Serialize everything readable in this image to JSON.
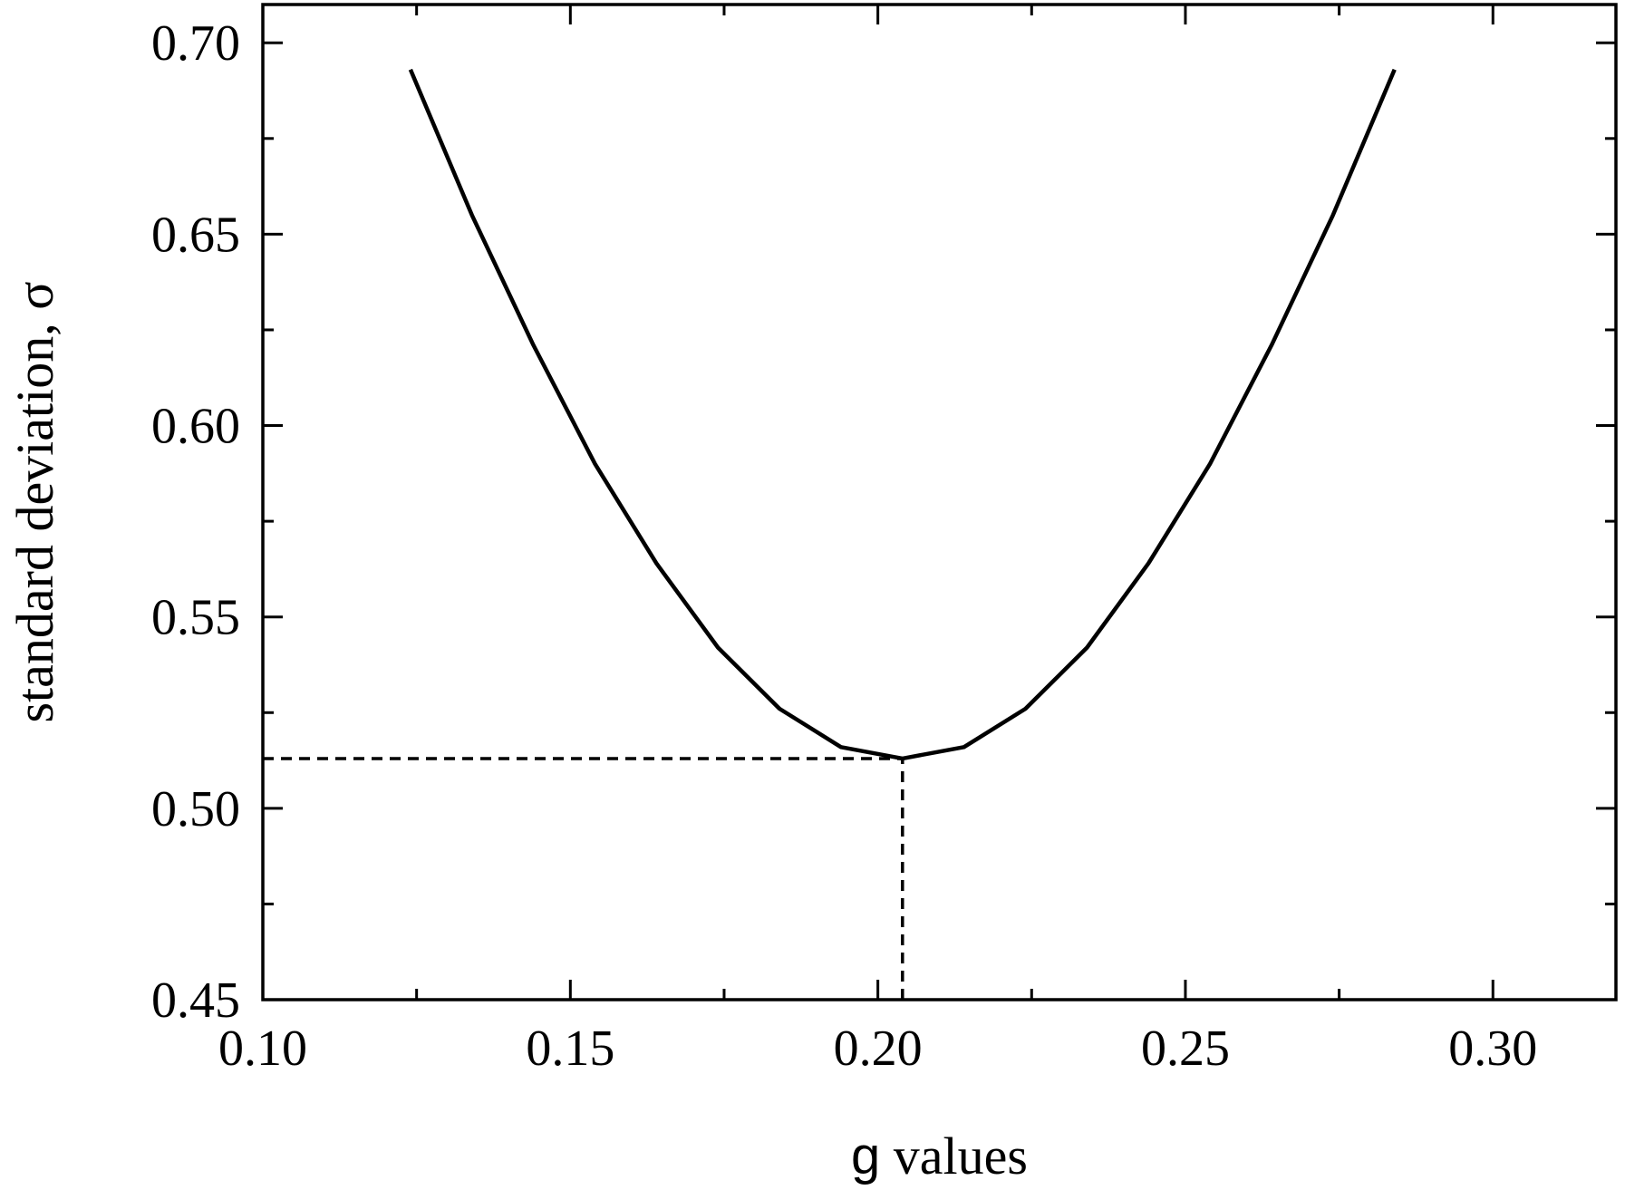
{
  "chart_data": {
    "type": "line",
    "title": "",
    "xlabel": "g values",
    "xlabel_parts": [
      "g",
      " values"
    ],
    "ylabel": "standard deviation, σ",
    "xlim": [
      0.1,
      0.32
    ],
    "ylim": [
      0.45,
      0.71
    ],
    "xticks": [
      0.1,
      0.15,
      0.2,
      0.25,
      0.3
    ],
    "xtick_labels": [
      "0.10",
      "0.15",
      "0.20",
      "0.25",
      "0.30"
    ],
    "yticks": [
      0.45,
      0.5,
      0.55,
      0.6,
      0.65,
      0.7
    ],
    "ytick_labels": [
      "0.45",
      "0.50",
      "0.55",
      "0.60",
      "0.65",
      "0.70"
    ],
    "x_minor_step": 0.025,
    "y_minor_step": 0.025,
    "grid": false,
    "legend": "none",
    "series": [
      {
        "style": "solid",
        "color": "#000000",
        "x": [
          0.124,
          0.134,
          0.144,
          0.154,
          0.164,
          0.174,
          0.184,
          0.194,
          0.204,
          0.214,
          0.224,
          0.234,
          0.244,
          0.254,
          0.264,
          0.274,
          0.284
        ],
        "y": [
          0.693,
          0.655,
          0.621,
          0.59,
          0.564,
          0.542,
          0.526,
          0.516,
          0.513,
          0.516,
          0.526,
          0.542,
          0.564,
          0.59,
          0.621,
          0.655,
          0.693
        ]
      }
    ],
    "annotations": [
      {
        "type": "dashed-hline",
        "y": 0.513,
        "x_from": 0.1,
        "x_to": 0.204
      },
      {
        "type": "dashed-vline",
        "x": 0.204,
        "y_from": 0.45,
        "y_to": 0.513
      }
    ]
  }
}
